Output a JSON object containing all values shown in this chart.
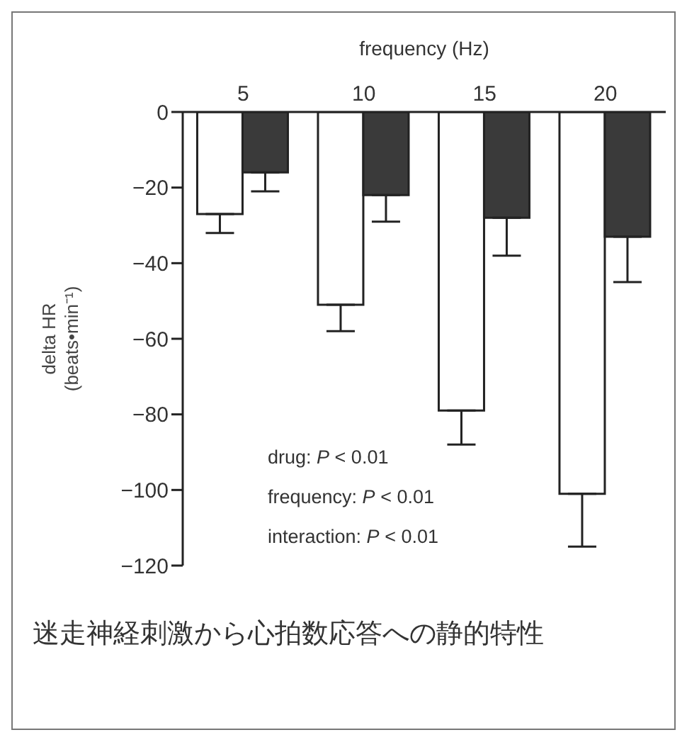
{
  "chart_data": {
    "type": "bar",
    "xlabel": "frequency (Hz)",
    "ylabel": "delta HR\n(beats•min⁻¹)",
    "categories": [
      "5",
      "10",
      "15",
      "20"
    ],
    "series": [
      {
        "color": "#ffffff",
        "values": [
          -27,
          -51,
          -79,
          -101
        ],
        "errors": [
          [
            -32,
            -27
          ],
          [
            -58,
            -51
          ],
          [
            -88,
            -79
          ],
          [
            -115,
            -101
          ]
        ]
      },
      {
        "color": "#3a3a3a",
        "values": [
          -16,
          -22,
          -28,
          -33
        ],
        "errors": [
          [
            -21,
            -16
          ],
          [
            -29,
            -22
          ],
          [
            -38,
            -28
          ],
          [
            -45,
            -33
          ]
        ]
      }
    ],
    "ylim": [
      -120,
      0
    ],
    "yticks": [
      {
        "value": -120,
        "label": "−120"
      },
      {
        "value": -100,
        "label": "−100"
      },
      {
        "value": -80,
        "label": "−80"
      },
      {
        "value": -60,
        "label": "−60"
      },
      {
        "value": -40,
        "label": "−40"
      },
      {
        "value": -20,
        "label": "−20"
      },
      0
    ],
    "grid": false,
    "legend": false,
    "annotations": [
      "drug: P < 0.01",
      "frequency: P < 0.01",
      "interaction: P < 0.01",
      "迷走神経刺激から心拍数応答への静的特性"
    ]
  }
}
